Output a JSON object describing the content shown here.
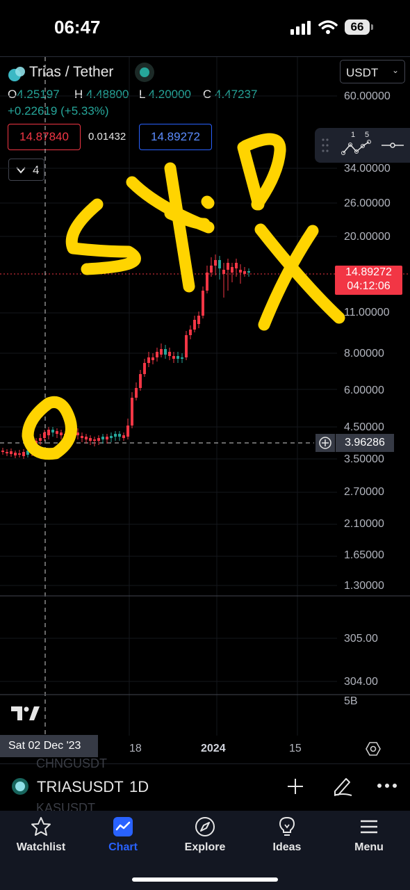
{
  "status_bar": {
    "time": "06:47",
    "battery": "66"
  },
  "header": {
    "symbol_title": "Trias / Tether",
    "currency": "USDT",
    "ohlc": {
      "o_key": "O",
      "o": "4.25197",
      "h_key": "H",
      "h": "4.48800",
      "l_key": "L",
      "l": "4.20000",
      "c_key": "C",
      "c": "4.47237"
    },
    "change": "+0.22619 (+5.33%)",
    "bid": "14.87840",
    "spread": "0.01432",
    "ask": "14.89272",
    "indicator_count": "4"
  },
  "toolbar": {
    "digit_1": "1",
    "digit_5": "5"
  },
  "price_axis": {
    "labels": [
      "60.00000",
      "34.00000",
      "26.00000",
      "20.00000",
      "11.00000",
      "8.00000",
      "6.00000",
      "4.50000",
      "3.50000",
      "2.70000",
      "2.10000",
      "1.65000",
      "1.30000"
    ],
    "current_price": "14.89272",
    "countdown": "04:12:06",
    "crosshair_price": "3.96286"
  },
  "volume_axis": {
    "labels": [
      "305.00",
      "304.00"
    ],
    "scale": "5B"
  },
  "time_axis": {
    "cursor_date": "Sat 02 Dec '23",
    "labels": [
      "18",
      "2024",
      "15"
    ]
  },
  "annotation": {
    "word": "SKIP",
    "mark": "X"
  },
  "symbol_bar": {
    "ghost_above": "CHNGUSDT",
    "symbol": "TRIASUSDT",
    "interval": "1D",
    "ghost_below": "KASUSDT"
  },
  "tabs": [
    {
      "label": "Watchlist",
      "icon": "star-icon",
      "active": false
    },
    {
      "label": "Chart",
      "icon": "chart-icon",
      "active": true
    },
    {
      "label": "Explore",
      "icon": "compass-icon",
      "active": false
    },
    {
      "label": "Ideas",
      "icon": "lightbulb-icon",
      "active": false
    },
    {
      "label": "Menu",
      "icon": "hamburger-icon",
      "active": false
    }
  ],
  "colors": {
    "up": "#26a69a",
    "down": "#f23645",
    "accent": "#2962ff",
    "annotation": "#ffd400"
  }
}
